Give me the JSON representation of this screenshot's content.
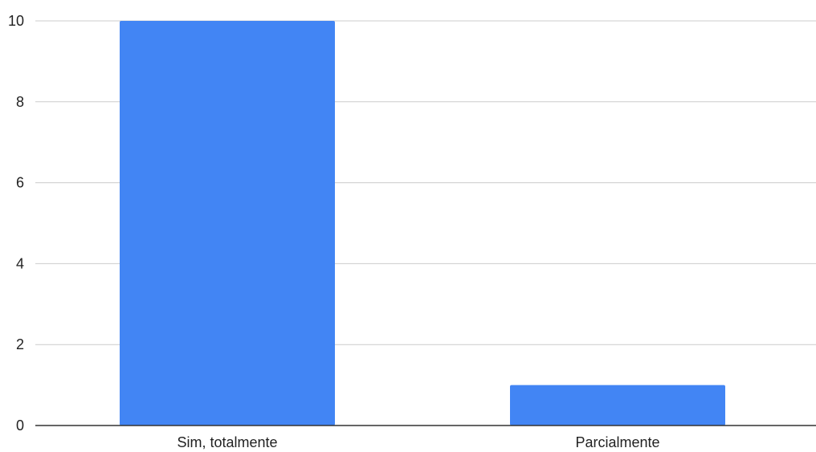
{
  "chart_data": {
    "type": "bar",
    "title": "",
    "xlabel": "",
    "ylabel": "",
    "categories": [
      "Sim, totalmente",
      "Parcialmente"
    ],
    "values": [
      10,
      1
    ],
    "ylim": [
      0,
      10
    ],
    "yticks": [
      0,
      2,
      4,
      6,
      8,
      10
    ],
    "grid": true,
    "legend": "none",
    "bar_color": "#4285f4",
    "grid_color": "#cccccc",
    "axis_color": "#333333"
  }
}
